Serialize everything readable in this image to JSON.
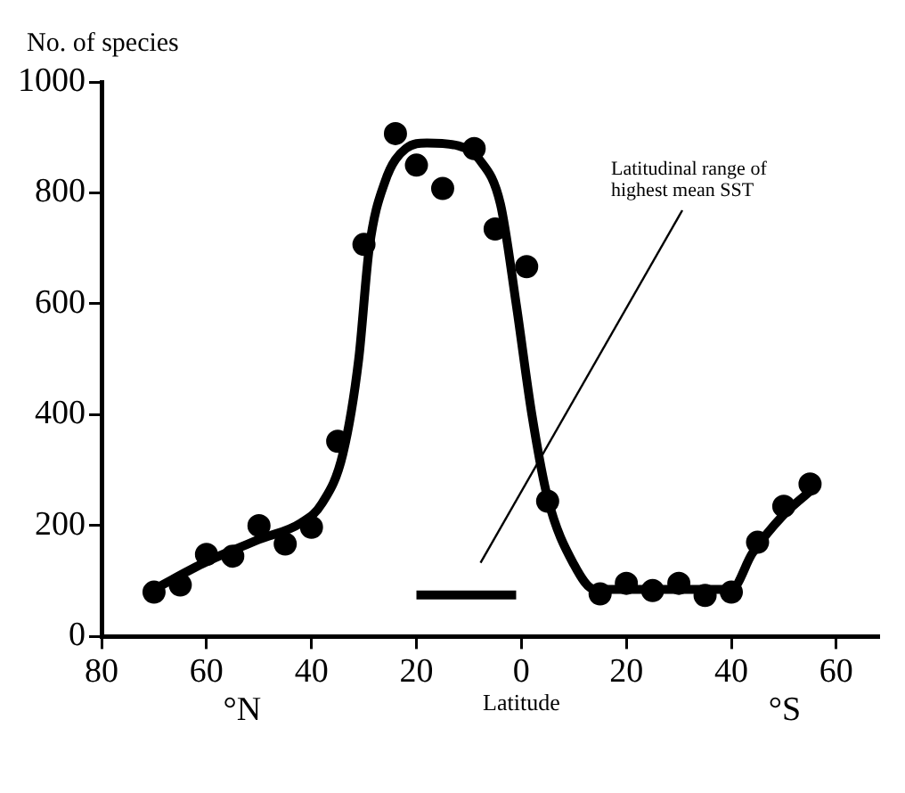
{
  "chart_data": {
    "type": "scatter",
    "ylabel": "No. of species",
    "xlabel": "Latitude",
    "xlim": [
      80,
      -68
    ],
    "xticks": [
      80,
      60,
      40,
      20,
      0,
      {
        "value": -20,
        "label": "20"
      },
      {
        "value": -40,
        "label": "40"
      },
      {
        "value": -60,
        "label": "60"
      }
    ],
    "ylim": [
      0,
      1000
    ],
    "yticks": [
      0,
      200,
      400,
      600,
      800,
      1000
    ],
    "grid": false,
    "marker": "circle",
    "legend": false,
    "series": [
      {
        "color": "#000000",
        "x": [
          70,
          65,
          60,
          55,
          50,
          45,
          40,
          35,
          30,
          24,
          20,
          15,
          9,
          5,
          -1,
          -5,
          -15,
          -20,
          -25,
          -30,
          -35,
          -40,
          -45,
          -50,
          -55
        ],
        "values": [
          80,
          93,
          148,
          145,
          200,
          167,
          197,
          352,
          707,
          907,
          850,
          808,
          880,
          735,
          667,
          244,
          77,
          96,
          83,
          96,
          74,
          80,
          170,
          235,
          275
        ]
      },
      {
        "type": "line",
        "color": "#000000",
        "marker": "none",
        "x": [
          70,
          60,
          50,
          42,
          38,
          34,
          31,
          29,
          26,
          22,
          18,
          12,
          8,
          4,
          1,
          -2,
          -5,
          -10,
          -14,
          -20,
          -30,
          -40,
          -44,
          -50,
          -56
        ],
        "values": [
          85,
          135,
          175,
          205,
          240,
          330,
          500,
          700,
          820,
          880,
          890,
          885,
          860,
          780,
          600,
          400,
          250,
          130,
          85,
          85,
          85,
          85,
          150,
          220,
          270
        ]
      },
      {
        "type": "line",
        "color": "#000000",
        "marker": "none",
        "x": [
          20,
          1
        ],
        "values": [
          75,
          75
        ]
      }
    ],
    "annotations": [
      "°N",
      "°S",
      "Latitudinal range of highest mean SST"
    ]
  }
}
